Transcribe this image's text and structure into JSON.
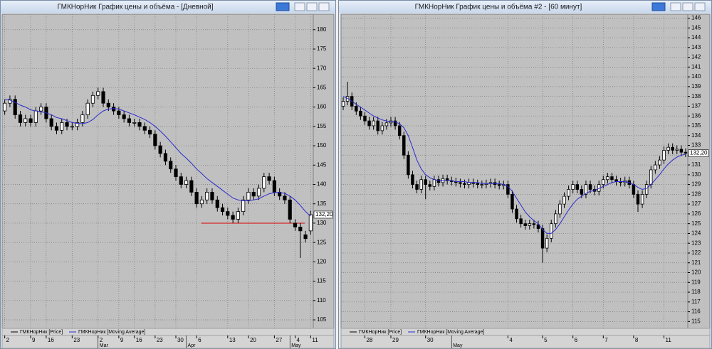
{
  "windows": [
    {
      "title": "ГМКНорНик График цены и объёма - [Дневной]"
    },
    {
      "title": "ГМКНорНик График цены и объёма #2 - [60 минут]"
    }
  ],
  "chart_data": [
    {
      "type": "candlestick",
      "grid": true,
      "ylim": [
        102.8,
        184
      ],
      "yticks": [
        105,
        110,
        115,
        120,
        125,
        130,
        135,
        140,
        145,
        150,
        155,
        160,
        165,
        170,
        175,
        180
      ],
      "xticks": [
        {
          "value": 0,
          "label": "2"
        },
        {
          "value": 5,
          "label": "9"
        },
        {
          "value": 8,
          "label": "16"
        },
        {
          "value": 13,
          "label": "23"
        },
        {
          "value": 18,
          "label": "2"
        },
        {
          "value": 22,
          "label": "9"
        },
        {
          "value": 25,
          "label": "16"
        },
        {
          "value": 29,
          "label": "23"
        },
        {
          "value": 33,
          "label": "30"
        },
        {
          "value": 37,
          "label": "6"
        },
        {
          "value": 43,
          "label": "13"
        },
        {
          "value": 47,
          "label": "20"
        },
        {
          "value": 52,
          "label": "27"
        },
        {
          "value": 56,
          "label": "4"
        },
        {
          "value": 59,
          "label": "11"
        }
      ],
      "months": [
        {
          "value": 18,
          "label": "Mar"
        },
        {
          "value": 35,
          "label": "Apr"
        },
        {
          "value": 55,
          "label": "May"
        }
      ],
      "last_price": {
        "value": 132.2,
        "label": "132,20"
      },
      "level_line": {
        "value": 130,
        "color": "#e00000"
      },
      "series": [
        {
          "name": "ГМКНорНик [Price]",
          "color": "#000000",
          "up_color": "#ffffff",
          "open": [
            159,
            161,
            162,
            158,
            156,
            157,
            156,
            159,
            160,
            157,
            155,
            154,
            156,
            155,
            155,
            156,
            158,
            161,
            163,
            164,
            161,
            160,
            159,
            158,
            157,
            156,
            156,
            155,
            154,
            153,
            150,
            148,
            146,
            144,
            142,
            140,
            141,
            138,
            135,
            136,
            138,
            136,
            134,
            133,
            132,
            131,
            133,
            136,
            138,
            137,
            139,
            142,
            141,
            138,
            137,
            136,
            130,
            129,
            127,
            128
          ],
          "high": [
            162,
            163,
            163,
            159,
            158,
            158,
            160,
            161,
            161,
            158,
            156,
            157,
            157,
            156,
            157,
            159,
            162,
            164,
            165,
            165,
            162,
            161,
            160,
            159,
            158,
            157,
            157,
            156,
            155,
            154,
            151,
            149,
            147,
            145,
            143,
            142,
            142,
            139,
            137,
            139,
            139,
            137,
            135,
            134,
            133,
            134,
            137,
            139,
            139,
            140,
            143,
            143,
            142,
            139,
            138,
            137,
            131,
            130,
            128,
            133.2
          ],
          "low": [
            158,
            160,
            157,
            155,
            155,
            155,
            155,
            158,
            156,
            154,
            153,
            153,
            154,
            154,
            154,
            155,
            157,
            160,
            162,
            160,
            159,
            158,
            157,
            156,
            155,
            155,
            154,
            153,
            152,
            149,
            147,
            145,
            143,
            141,
            139,
            139,
            137,
            134,
            134,
            135,
            135,
            133,
            132,
            131,
            130,
            130,
            132,
            135,
            136,
            136,
            138,
            140,
            137,
            136,
            135,
            130,
            128,
            121,
            125,
            127
          ],
          "close": [
            161,
            162,
            158,
            156,
            157,
            156,
            159,
            160,
            157,
            155,
            154,
            156,
            155,
            155,
            156,
            158,
            161,
            163,
            164,
            161,
            160,
            159,
            158,
            157,
            156,
            156,
            155,
            154,
            153,
            150,
            148,
            146,
            144,
            142,
            140,
            141,
            138,
            135,
            136,
            138,
            136,
            134,
            133,
            132,
            131,
            133,
            136,
            138,
            137,
            139,
            142,
            141,
            138,
            137,
            136,
            131,
            129,
            128,
            126,
            132.2
          ]
        },
        {
          "name": "ГМКНорНик [Moving Average]",
          "color": "#2a2ad0",
          "values": [
            162,
            161.8,
            161.2,
            160.5,
            160,
            159.3,
            159,
            158.8,
            158.5,
            158,
            157.3,
            157,
            156.5,
            156,
            155.8,
            155.7,
            156,
            156.8,
            158,
            159,
            159.5,
            159.6,
            159.5,
            159,
            158.5,
            158,
            157.4,
            156.8,
            156,
            155,
            153.8,
            152.5,
            151,
            149.5,
            148,
            146.8,
            145.5,
            144,
            142.8,
            141.5,
            140.5,
            139.5,
            138.5,
            137.5,
            136.5,
            136,
            135.8,
            135.8,
            136,
            136.3,
            137,
            137.6,
            137.9,
            137.9,
            137.7,
            137,
            136,
            134.6,
            133,
            131.8
          ]
        }
      ]
    },
    {
      "type": "candlestick",
      "grid": true,
      "ylim": [
        114.3,
        146.4
      ],
      "yticks": [
        115,
        116,
        117,
        118,
        119,
        120,
        121,
        122,
        123,
        124,
        125,
        126,
        127,
        128,
        129,
        130,
        131,
        132,
        133,
        134,
        135,
        136,
        137,
        138,
        139,
        140,
        141,
        142,
        143,
        144,
        145,
        146
      ],
      "xticks": [
        {
          "value": 5,
          "label": "28"
        },
        {
          "value": 11,
          "label": "29"
        },
        {
          "value": 19,
          "label": "30"
        },
        {
          "value": 38,
          "label": "4"
        },
        {
          "value": 46,
          "label": "5"
        },
        {
          "value": 53,
          "label": "6"
        },
        {
          "value": 60,
          "label": "7"
        },
        {
          "value": 67,
          "label": "8"
        },
        {
          "value": 74,
          "label": "11"
        }
      ],
      "months": [
        {
          "value": 25,
          "label": "May"
        }
      ],
      "last_price": {
        "value": 132.2,
        "label": "132,20"
      },
      "series": [
        {
          "name": "ГМКНорНик [Price]",
          "color": "#000000",
          "up_color": "#ffffff",
          "open": [
            137,
            137.5,
            138,
            137,
            136.5,
            136,
            135.5,
            135,
            135.5,
            134.5,
            135,
            135.3,
            135.5,
            135,
            134,
            132,
            130,
            129,
            128.5,
            129.5,
            129,
            128.8,
            129.5,
            129.2,
            129.6,
            129.4,
            129.3,
            129.2,
            129.1,
            129,
            129.2,
            129.1,
            129,
            129,
            129.1,
            129.2,
            129,
            128.9,
            129,
            128,
            126.5,
            125.5,
            125,
            124.8,
            125,
            124.9,
            124.5,
            122.5,
            123.5,
            125,
            126,
            127,
            127.8,
            128.5,
            129,
            128.5,
            128,
            129,
            128.5,
            128.3,
            129,
            129.5,
            129.8,
            129.5,
            129.3,
            129.2,
            129.4,
            129,
            128,
            127,
            128,
            129,
            130.5,
            131,
            131.5,
            132.5,
            132.8,
            132.5,
            132.6,
            132.3
          ],
          "high": [
            137.9,
            139.5,
            138.4,
            137.4,
            136.9,
            136.4,
            135.9,
            135.9,
            135.9,
            135.4,
            135.7,
            135.9,
            135.9,
            135.4,
            134.4,
            132.4,
            130.4,
            129.4,
            129.9,
            129.9,
            129.4,
            129.9,
            129.9,
            130,
            130,
            129.8,
            129.7,
            129.6,
            129.5,
            129.6,
            129.6,
            129.5,
            129.4,
            129.5,
            129.6,
            129.6,
            129.4,
            129.4,
            129.4,
            128.4,
            126.9,
            125.9,
            125.4,
            125.4,
            125.4,
            125.3,
            124.9,
            123.9,
            125.4,
            126.4,
            127.4,
            128.2,
            128.9,
            129.4,
            129.4,
            128.9,
            129.4,
            129.4,
            128.9,
            129.4,
            129.9,
            130.2,
            130.2,
            129.9,
            129.7,
            129.8,
            129.8,
            129.4,
            128.4,
            128.4,
            129.4,
            130.9,
            131.4,
            131.9,
            132.9,
            133.2,
            133.2,
            133,
            133,
            132.7
          ],
          "low": [
            136.6,
            137.1,
            136.6,
            136.1,
            135.6,
            135.1,
            134.6,
            134.6,
            134.1,
            134.1,
            134.6,
            134.9,
            134.6,
            133.6,
            131.6,
            129.6,
            128.6,
            128.1,
            128.1,
            127.5,
            128.4,
            128.4,
            128.8,
            128.8,
            129,
            128.9,
            128.8,
            128.7,
            128.6,
            128.6,
            128.7,
            128.6,
            128.6,
            128.6,
            128.7,
            128.6,
            128.5,
            128.5,
            127.6,
            126.1,
            125.1,
            124.6,
            124.4,
            124.4,
            124.5,
            124.1,
            121,
            122.1,
            123.1,
            124.6,
            125.6,
            126.6,
            127.4,
            128.1,
            128.1,
            127.6,
            127.6,
            128.1,
            127.9,
            127.9,
            128.6,
            129.1,
            129.1,
            128.9,
            128.8,
            128.8,
            128.6,
            127.6,
            126.2,
            126.6,
            127.6,
            128.6,
            130.1,
            130.6,
            131.1,
            132.1,
            132.1,
            132.1,
            131.9,
            131.8
          ],
          "close": [
            137.5,
            138,
            137,
            136.5,
            136,
            135.5,
            135,
            135.5,
            134.5,
            135,
            135.3,
            135.5,
            135,
            134,
            132,
            130,
            129,
            128.5,
            129.5,
            129,
            128.8,
            129.5,
            129.2,
            129.6,
            129.4,
            129.3,
            129.2,
            129.1,
            129,
            129.2,
            129.1,
            129,
            129,
            129.1,
            129.2,
            129,
            128.9,
            129,
            128,
            126.5,
            125.5,
            125,
            124.8,
            125,
            124.9,
            124.5,
            122.5,
            123.5,
            125,
            126,
            127,
            127.8,
            128.5,
            129,
            128.5,
            128,
            129,
            128.5,
            128.3,
            129,
            129.5,
            129.8,
            129.5,
            129.3,
            129.2,
            129.4,
            129,
            128,
            127,
            128,
            129,
            130.5,
            131,
            131.5,
            132.5,
            132.8,
            132.5,
            132.6,
            132.3,
            132.2
          ]
        },
        {
          "name": "ГМКНорНик [Moving Average]",
          "color": "#2a2ad0",
          "values": [
            138,
            137.8,
            137.5,
            137.2,
            136.9,
            136.6,
            136.3,
            136,
            135.8,
            135.6,
            135.5,
            135.4,
            135.4,
            135.2,
            134.8,
            134,
            132.8,
            131.5,
            130.6,
            130,
            129.7,
            129.5,
            129.4,
            129.4,
            129.4,
            129.4,
            129.3,
            129.3,
            129.3,
            129.2,
            129.2,
            129.2,
            129.1,
            129.1,
            129.1,
            129.1,
            129.1,
            129,
            128.8,
            128.3,
            127.6,
            126.9,
            126.2,
            125.7,
            125.3,
            125,
            124.4,
            124,
            124,
            124.4,
            125,
            125.7,
            126.4,
            127,
            127.5,
            127.8,
            128.1,
            128.3,
            128.4,
            128.6,
            128.8,
            129,
            129.2,
            129.3,
            129.3,
            129.3,
            129.2,
            129,
            128.7,
            128.5,
            128.6,
            129,
            129.5,
            130,
            130.6,
            131.1,
            131.5,
            131.8,
            132,
            132.1
          ]
        }
      ]
    }
  ]
}
